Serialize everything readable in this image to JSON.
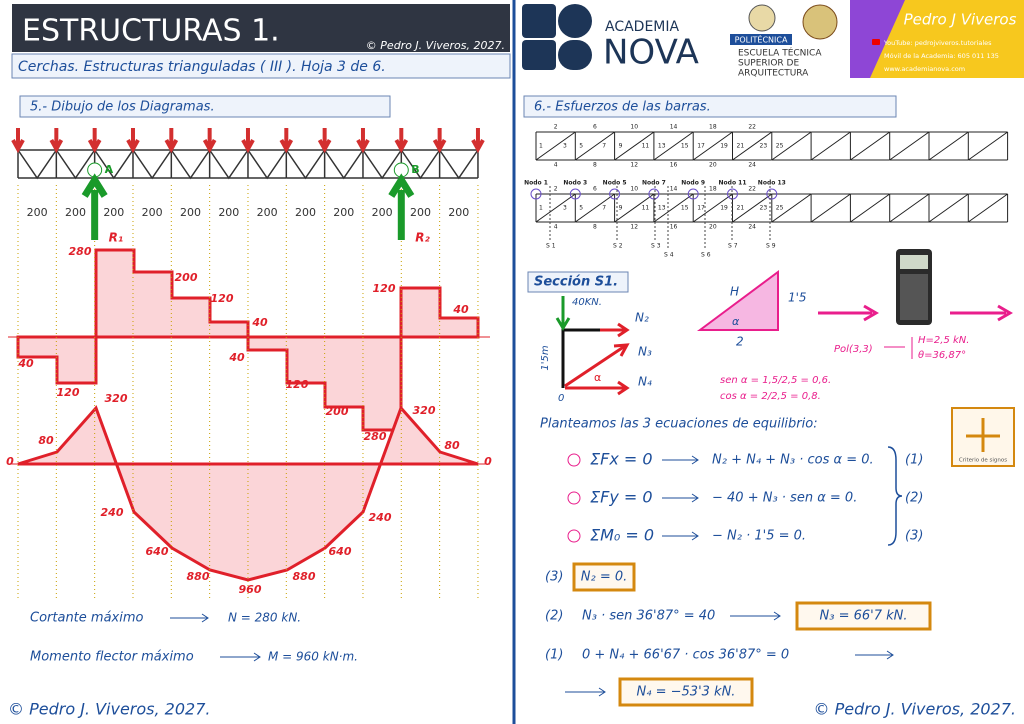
{
  "header": {
    "title": "ESTRUCTURAS 1.",
    "copyright": "© Pedro J. Viveros, 2027.",
    "subtitle": "Cerchas. Estructuras trianguladas ( III ).  Hoja 3 de 6."
  },
  "logos": {
    "academia": "ACADEMIA",
    "nova": "NOVA",
    "politecnica": "POLITÉCNICA",
    "escuela": [
      "ESCUELA TÉCNICA",
      "SUPERIOR DE",
      "ARQUITECTURA"
    ],
    "signature": "Pedro J Viveros",
    "youtube": "YouTube: pedrojviveros.tutoriales",
    "phone": "Móvil de la Academia: 605 011 135",
    "web": "www.academianova.com"
  },
  "left": {
    "heading": "5.- Dibujo de los Diagramas.",
    "supports": [
      "A",
      "B"
    ],
    "reactions": [
      "R₁",
      "R₂"
    ],
    "spans": [
      "200",
      "200",
      "200",
      "200",
      "200",
      "200",
      "200",
      "200",
      "200",
      "200",
      "200",
      "200"
    ],
    "shear_labels": [
      "40",
      "120",
      "280",
      "200",
      "120",
      "40",
      "40",
      "120",
      "200",
      "280",
      "120",
      "40"
    ],
    "moment_labels": [
      "0",
      "80",
      "320",
      "240",
      "640",
      "880",
      "960",
      "880",
      "640",
      "240",
      "320",
      "80",
      "0"
    ],
    "summary": [
      {
        "label": "Cortante máximo",
        "result": "N = 280 kN."
      },
      {
        "label": "Momento flector máximo",
        "result": "M = 960 kN·m."
      }
    ]
  },
  "right": {
    "heading": "6.- Esfuerzos de las barras.",
    "truss": {
      "bars_top": [
        "2",
        "6",
        "10",
        "14",
        "18",
        "22"
      ],
      "bars_mid": [
        "1",
        "3",
        "5",
        "7",
        "9",
        "11",
        "13",
        "15",
        "17",
        "19",
        "21",
        "23",
        "25"
      ],
      "bars_bottom": [
        "4",
        "8",
        "12",
        "16",
        "20",
        "24"
      ]
    },
    "nodes": [
      "Nodo 1",
      "Nodo 3",
      "Nodo 5",
      "Nodo 7",
      "Nodo 9",
      "Nodo 11",
      "Nodo 13"
    ],
    "sections": [
      "S 1",
      "S 2",
      "S 3",
      "S 4",
      "S 6",
      "S 7",
      "S 9"
    ],
    "section_title": "Sección S1.",
    "free_body": {
      "load": "40KN.",
      "forces": [
        "N₂",
        "N₃",
        "N₄"
      ],
      "angle": "α",
      "height": "1'5m",
      "origin": "0"
    },
    "triangle": {
      "hyp": "H",
      "side": "1'5",
      "angle": "α",
      "base": "2"
    },
    "calc": {
      "input": "Pol(3,3)",
      "results": [
        "H=2,5 kN.",
        "θ=36,87°"
      ]
    },
    "trig": [
      "sen α = 1,5/2,5 = 0,6.",
      "cos α = 2/2,5 = 0,8."
    ],
    "sign_caption": "Criterio de signos",
    "intro": "Planteamos las 3 ecuaciones de equilibrio:",
    "equations": [
      {
        "sum": "ΣFx = 0",
        "expr": "N₂ + N₄ + N₃ · cos α = 0.",
        "num": "(1)"
      },
      {
        "sum": "ΣFy = 0",
        "expr": "− 40 + N₃ · sen α = 0.",
        "num": "(2)"
      },
      {
        "sum": "ΣM₀ = 0",
        "expr": "− N₂ · 1'5 = 0.",
        "num": "(3)"
      }
    ],
    "solutions": [
      {
        "num": "(3)",
        "expr": "",
        "result": "N₂ = 0."
      },
      {
        "num": "(2)",
        "expr": "N₃ · sen 36'87° = 40",
        "result": "N₃ = 66'7 kN."
      },
      {
        "num": "(1)",
        "expr": "0 + N₄ + 66'67 · cos 36'87° = 0",
        "result": "N₄ = −53'3 kN."
      }
    ]
  },
  "footer": [
    "© Pedro J. Viveros, 2027.",
    "© Pedro J. Viveros, 2027."
  ]
}
